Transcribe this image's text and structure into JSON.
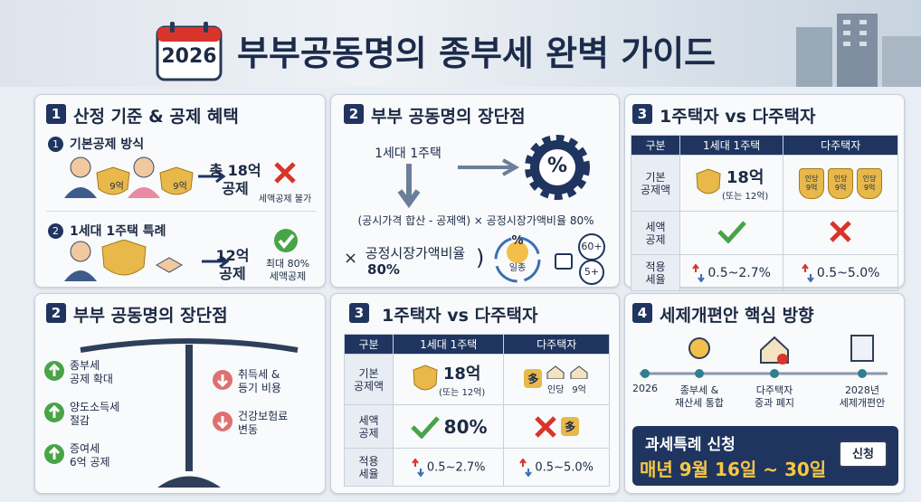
{
  "header": {
    "year": "2026",
    "title": "부부공동명의 종부세 완벽 가이드"
  },
  "basis": {
    "num": "1",
    "title": "산정 기준 & 공제 혜택",
    "item1": {
      "num": "1",
      "title": "기본공제 방식",
      "shields": [
        "9억",
        "9억"
      ],
      "result": [
        "총 18억",
        "공제"
      ],
      "note": "세액공제 불가"
    },
    "item2": {
      "num": "2",
      "title": "1세대 1주택 특례",
      "result": [
        "12억",
        "공제"
      ],
      "note": [
        "최대 80%",
        "세액공제"
      ]
    }
  },
  "formula": {
    "num": "2",
    "title": "부부 공동명의 장단점",
    "start": "1세대 1주택",
    "main": "(공시가격 합산 - 공제액) × 공정시장가액비율 80%",
    "times": "×",
    "ratio": [
      "공정시장가액비율",
      "80%"
    ],
    "close": ")",
    "circle": [
      "%",
      "일종"
    ],
    "badges": [
      "60+",
      "5+"
    ]
  },
  "compare_top": {
    "num": "3",
    "title": "1주택자 vs 다주택자",
    "headers": [
      "구분",
      "1세대 1주택",
      "다주택자"
    ],
    "rows": [
      {
        "label": [
          "기본",
          "공제액"
        ],
        "single": [
          "18억",
          "(또는 12억)"
        ],
        "multi": [
          [
            "인당",
            "9억"
          ],
          [
            "인당",
            "9억"
          ],
          [
            "인당",
            "9억"
          ]
        ]
      },
      {
        "label": [
          "세액",
          "공제"
        ]
      },
      {
        "label": [
          "적용",
          "세율"
        ],
        "single": "0.5~2.7%",
        "multi": "0.5~5.0%"
      }
    ]
  },
  "proscons": {
    "num": "2",
    "title": "부부 공동명의 장단점",
    "pros": [
      [
        "종부세",
        "공제 확대"
      ],
      [
        "양도소득세",
        "절감"
      ],
      [
        "증여세",
        "6억 공제"
      ]
    ],
    "cons": [
      [
        "취득세 &",
        "등기 비용"
      ],
      [
        "건강보험료",
        "변동"
      ]
    ]
  },
  "compare_bottom": {
    "num": "3",
    "title": "1주택자 vs 다주택자",
    "headers": [
      "구분",
      "1세대 1주택",
      "다주택자"
    ],
    "rows": [
      {
        "label": [
          "기본",
          "공제액"
        ],
        "single": [
          "18억",
          "(또는 12억)"
        ],
        "multi": [
          "多",
          "인당",
          "9억"
        ]
      },
      {
        "label": [
          "세액",
          "공제"
        ],
        "single": "80%",
        "multi": "多"
      },
      {
        "label": [
          "적용",
          "세율"
        ],
        "single": "0.5~2.7%",
        "multi": "0.5~5.0%"
      }
    ]
  },
  "reform": {
    "num": "4",
    "title": "세제개편안 핵심 방향",
    "timeline": [
      [
        "2026"
      ],
      [
        "종부세 &",
        "재산세 통합"
      ],
      [
        "다주택자",
        "중과 폐지"
      ],
      [
        "2028년",
        "세제개편안"
      ]
    ],
    "callout": {
      "title": "과세특례 신청",
      "date": "매년 9월 16일 ~ 30일",
      "button": "신청"
    }
  }
}
